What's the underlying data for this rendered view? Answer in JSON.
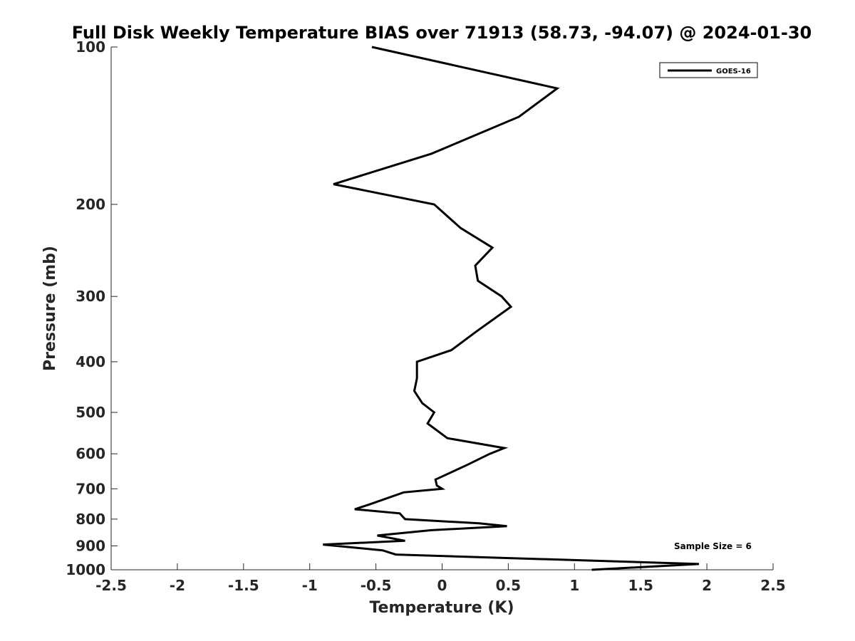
{
  "chart_data": {
    "type": "line",
    "title": "Full Disk Weekly Temperature BIAS over 71913 (58.73, -94.07) @ 2024-01-30",
    "xlabel": "Temperature (K)",
    "ylabel": "Pressure (mb)",
    "xlim": [
      -2.5,
      2.5
    ],
    "ylim": [
      100,
      1000
    ],
    "y_scale": "log",
    "y_reversed": true,
    "x_ticks": [
      "-2.5",
      "-2",
      "-1.5",
      "-1",
      "-0.5",
      "0",
      "0.5",
      "1",
      "1.5",
      "2",
      "2.5"
    ],
    "y_ticks": [
      "100",
      "200",
      "300",
      "400",
      "500",
      "600",
      "700",
      "800",
      "900",
      "1000"
    ],
    "grid": false,
    "legend_position": "top-right",
    "annotation": "Sample Size = 6",
    "series": [
      {
        "name": "GOES-16",
        "color": "#000000",
        "points": [
          {
            "p": 100,
            "t": -0.53
          },
          {
            "p": 120,
            "t": 0.87
          },
          {
            "p": 136,
            "t": 0.58
          },
          {
            "p": 160,
            "t": -0.08
          },
          {
            "p": 183,
            "t": -0.82
          },
          {
            "p": 200,
            "t": -0.06
          },
          {
            "p": 222,
            "t": 0.14
          },
          {
            "p": 242,
            "t": 0.38
          },
          {
            "p": 262,
            "t": 0.25
          },
          {
            "p": 280,
            "t": 0.27
          },
          {
            "p": 300,
            "t": 0.45
          },
          {
            "p": 314,
            "t": 0.52
          },
          {
            "p": 350,
            "t": 0.26
          },
          {
            "p": 380,
            "t": 0.07
          },
          {
            "p": 400,
            "t": -0.19
          },
          {
            "p": 430,
            "t": -0.19
          },
          {
            "p": 455,
            "t": -0.21
          },
          {
            "p": 480,
            "t": -0.15
          },
          {
            "p": 500,
            "t": -0.06
          },
          {
            "p": 525,
            "t": -0.11
          },
          {
            "p": 560,
            "t": 0.04
          },
          {
            "p": 585,
            "t": 0.47
          },
          {
            "p": 600,
            "t": 0.36
          },
          {
            "p": 630,
            "t": 0.19
          },
          {
            "p": 672,
            "t": -0.05
          },
          {
            "p": 690,
            "t": -0.04
          },
          {
            "p": 700,
            "t": 0.0
          },
          {
            "p": 711,
            "t": -0.29
          },
          {
            "p": 750,
            "t": -0.55
          },
          {
            "p": 766,
            "t": -0.66
          },
          {
            "p": 780,
            "t": -0.32
          },
          {
            "p": 800,
            "t": -0.28
          },
          {
            "p": 815,
            "t": 0.28
          },
          {
            "p": 825,
            "t": 0.49
          },
          {
            "p": 840,
            "t": -0.08
          },
          {
            "p": 860,
            "t": -0.49
          },
          {
            "p": 880,
            "t": -0.28
          },
          {
            "p": 895,
            "t": -0.9
          },
          {
            "p": 918,
            "t": -0.45
          },
          {
            "p": 935,
            "t": -0.35
          },
          {
            "p": 975,
            "t": 1.94
          },
          {
            "p": 1000,
            "t": 1.13
          }
        ]
      }
    ]
  }
}
